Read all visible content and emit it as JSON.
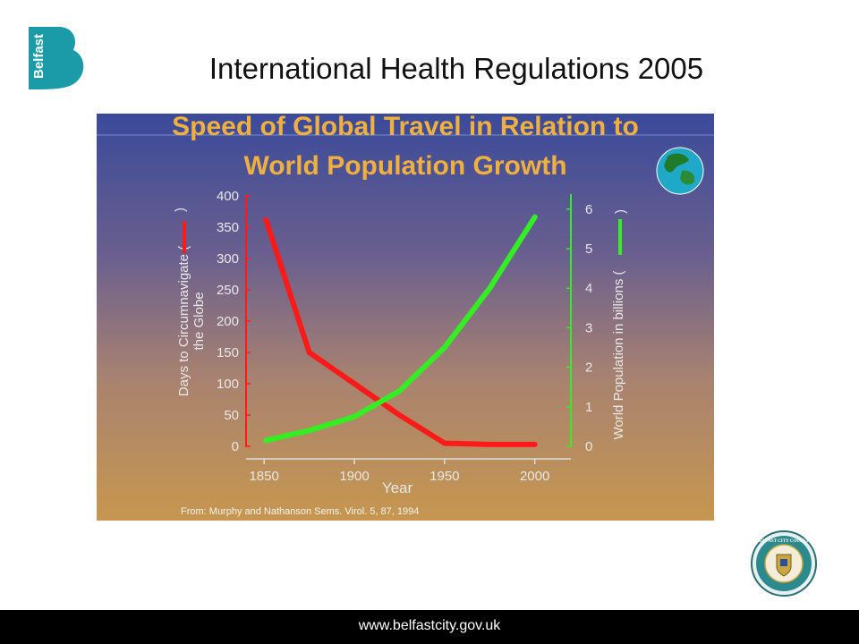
{
  "header": {
    "brand_text": "Belfast",
    "title": "International Health Regulations 2005"
  },
  "chart_data": {
    "type": "line",
    "title": "Speed of Global Travel in Relation to World Population Growth",
    "title_lines": [
      "Speed of Global Travel in Relation to",
      "World Population Growth"
    ],
    "xlabel": "Year",
    "x_ticks": [
      1850,
      1900,
      1950,
      2000
    ],
    "xlim": [
      1840,
      2020
    ],
    "ylabel_left_lines": [
      "Days to Circumnavigate (",
      "the Globe"
    ],
    "ylabel_right": "World Population in billions (",
    "y_left_ticks": [
      0,
      50,
      100,
      150,
      200,
      250,
      300,
      350,
      400
    ],
    "ylim_left": [
      0,
      400
    ],
    "y_right_ticks": [
      0,
      1,
      2,
      3,
      4,
      5,
      6
    ],
    "ylim_right": [
      0,
      6.2
    ],
    "series": [
      {
        "axis": "left",
        "color": "#ff1a1a",
        "x": [
          1851,
          1875,
          1925,
          1950,
          1975,
          2000
        ],
        "y": [
          362,
          150,
          50,
          5,
          3,
          3
        ]
      },
      {
        "axis": "right",
        "color": "#33ee22",
        "x": [
          1851,
          1875,
          1900,
          1925,
          1950,
          1975,
          2000
        ],
        "y": [
          0.15,
          0.4,
          0.75,
          1.4,
          2.5,
          4.0,
          5.8
        ]
      }
    ],
    "source": "From: Murphy and Nathanson Sems. Virol. 5, 87, 1994",
    "colors": {
      "left_axis": "#ff1a1a",
      "right_axis": "#33ee22",
      "title": "#f0b040",
      "tick_text": "#e8e8e8"
    }
  },
  "footer": {
    "url": "www.belfastcity.gov.uk",
    "crest_text": "BELFAST CITY COUNCIL"
  }
}
